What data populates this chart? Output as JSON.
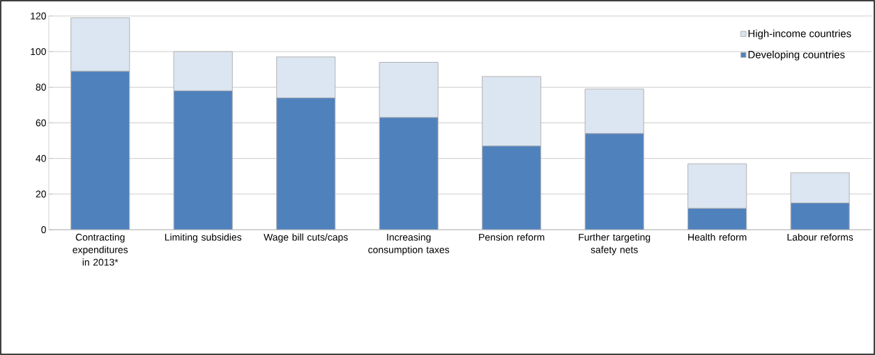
{
  "chart_data": {
    "type": "bar",
    "stacked": true,
    "categories": [
      "Contracting expenditures in 2013*",
      "Limiting subsidies",
      "Wage bill cuts/caps",
      "Increasing consumption taxes",
      "Pension reform",
      "Further targeting safety nets",
      "Health reform",
      "Labour reforms"
    ],
    "series": [
      {
        "name": "Developing countries",
        "color": "#4f81bd",
        "values": [
          89,
          78,
          74,
          63,
          47,
          54,
          12,
          15
        ]
      },
      {
        "name": "High-income countries",
        "color": "#dce6f2",
        "values": [
          30,
          22,
          23,
          31,
          39,
          25,
          25,
          17
        ]
      }
    ],
    "ylim": [
      0,
      120
    ],
    "yticks": [
      0,
      20,
      40,
      60,
      80,
      100,
      120
    ],
    "grid": "y",
    "legend": "top right"
  }
}
